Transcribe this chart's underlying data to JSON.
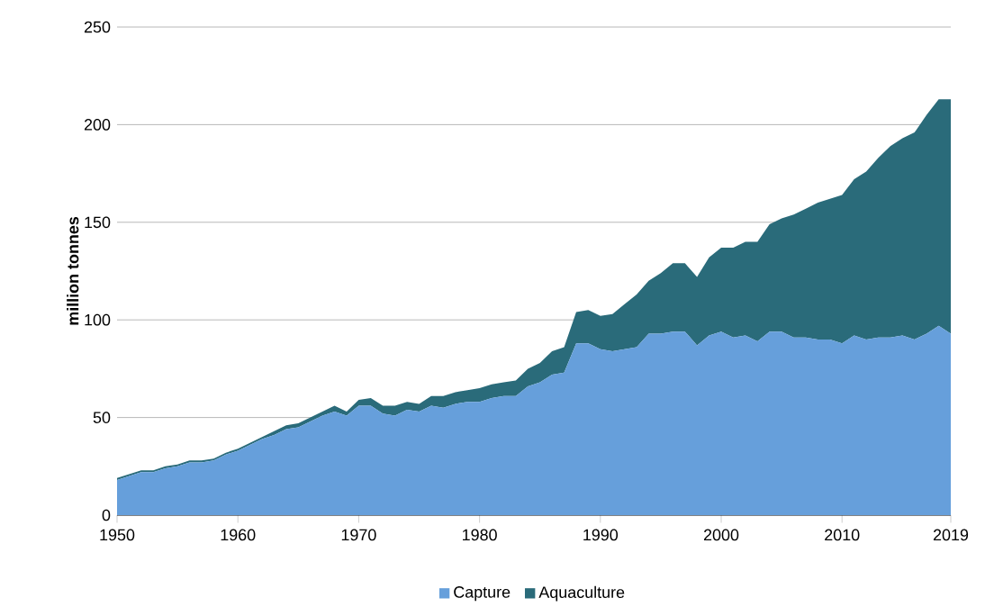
{
  "chart_data": {
    "type": "area",
    "stacked": true,
    "ylabel": "million tonnes",
    "x": [
      1950,
      1951,
      1952,
      1953,
      1954,
      1955,
      1956,
      1957,
      1958,
      1959,
      1960,
      1961,
      1962,
      1963,
      1964,
      1965,
      1966,
      1967,
      1968,
      1969,
      1970,
      1971,
      1972,
      1973,
      1974,
      1975,
      1976,
      1977,
      1978,
      1979,
      1980,
      1981,
      1982,
      1983,
      1984,
      1985,
      1986,
      1987,
      1988,
      1989,
      1990,
      1991,
      1992,
      1993,
      1994,
      1995,
      1996,
      1997,
      1998,
      1999,
      2000,
      2001,
      2002,
      2003,
      2004,
      2005,
      2006,
      2007,
      2008,
      2009,
      2010,
      2011,
      2012,
      2013,
      2014,
      2015,
      2016,
      2017,
      2018,
      2019
    ],
    "series": [
      {
        "name": "Capture",
        "color": "#669fdb",
        "values": [
          18,
          20,
          22,
          22,
          24,
          25,
          27,
          27,
          28,
          31,
          33,
          36,
          39,
          41,
          44,
          45,
          48,
          51,
          53,
          51,
          56,
          56,
          52,
          51,
          54,
          53,
          56,
          55,
          57,
          58,
          58,
          60,
          61,
          61,
          66,
          68,
          72,
          73,
          88,
          88,
          85,
          84,
          85,
          86,
          93,
          93,
          94,
          94,
          87,
          92,
          94,
          91,
          92,
          89,
          94,
          94,
          91,
          91,
          90,
          90,
          88,
          92,
          90,
          91,
          91,
          92,
          90,
          93,
          97,
          93
        ]
      },
      {
        "name": "Aquaculture",
        "color": "#2a6b7a",
        "values": [
          1,
          1,
          1,
          1,
          1,
          1,
          1,
          1,
          1,
          1,
          1,
          1,
          1,
          2,
          2,
          2,
          2,
          2,
          3,
          2,
          3,
          4,
          4,
          5,
          4,
          4,
          5,
          6,
          6,
          6,
          7,
          7,
          7,
          8,
          9,
          10,
          12,
          13,
          16,
          17,
          17,
          19,
          23,
          27,
          27,
          31,
          35,
          35,
          35,
          40,
          43,
          46,
          48,
          51,
          55,
          58,
          63,
          66,
          70,
          72,
          76,
          80,
          86,
          92,
          98,
          101,
          106,
          112,
          116,
          120
        ]
      }
    ],
    "xlim": [
      1950,
      2019
    ],
    "ylim": [
      0,
      250
    ],
    "xticks": [
      1950,
      1960,
      1970,
      1980,
      1990,
      2000,
      2010,
      2019
    ],
    "yticks": [
      0,
      50,
      100,
      150,
      200,
      250
    ],
    "grid": "y",
    "legend": "bottom"
  }
}
